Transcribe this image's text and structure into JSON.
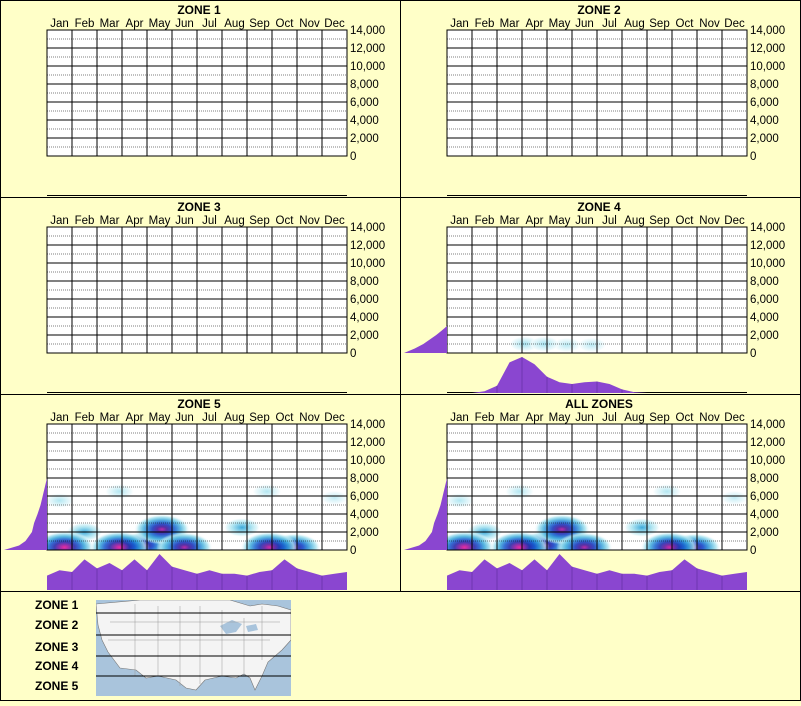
{
  "months": [
    "Jan",
    "Feb",
    "Mar",
    "Apr",
    "May",
    "Jun",
    "Jul",
    "Aug",
    "Sep",
    "Oct",
    "Nov",
    "Dec"
  ],
  "y_ticks": [
    "14,000",
    "12,000",
    "10,000",
    "8,000",
    "6,000",
    "4,000",
    "2,000",
    "0"
  ],
  "colors": {
    "background": "#ffffc8",
    "profile": "#8a46d0",
    "grid_line": "#000000"
  },
  "chart_data": [
    {
      "type": "heatmap",
      "title": "ZONE 1",
      "ylim": [
        0,
        14000
      ],
      "has_data": false,
      "hotspots": [],
      "left_profile": [],
      "bottom_profile": []
    },
    {
      "type": "heatmap",
      "title": "ZONE 2",
      "ylim": [
        0,
        14000
      ],
      "has_data": false,
      "hotspots": [],
      "left_profile": [],
      "bottom_profile": []
    },
    {
      "type": "heatmap",
      "title": "ZONE 3",
      "ylim": [
        0,
        14000
      ],
      "has_data": false,
      "hotspots": [],
      "left_profile": [],
      "bottom_profile": []
    },
    {
      "type": "heatmap",
      "title": "ZONE 4",
      "ylim": [
        0,
        14000
      ],
      "has_data": true,
      "hotspots": [
        {
          "month": 3.6,
          "elev": 1000,
          "intensity": 0.18
        },
        {
          "month": 4.4,
          "elev": 1000,
          "intensity": 0.18
        },
        {
          "month": 5.3,
          "elev": 900,
          "intensity": 0.14
        },
        {
          "month": 6.3,
          "elev": 900,
          "intensity": 0.14
        }
      ],
      "left_profile": [
        [
          0,
          1.0
        ],
        [
          500,
          0.75
        ],
        [
          1000,
          0.55
        ],
        [
          1500,
          0.4
        ],
        [
          2000,
          0.25
        ],
        [
          2500,
          0.12
        ],
        [
          3000,
          0.0
        ]
      ],
      "bottom_profile": [
        0,
        0,
        0,
        0.05,
        0.2,
        0.85,
        1.0,
        0.8,
        0.45,
        0.3,
        0.25,
        0.3,
        0.32,
        0.25,
        0.1,
        0.02,
        0,
        0,
        0,
        0,
        0,
        0,
        0,
        0,
        0
      ]
    },
    {
      "type": "heatmap",
      "title": "ZONE 5",
      "ylim": [
        0,
        14000
      ],
      "has_data": true,
      "hotspots": [
        {
          "month": 1.2,
          "elev": 300,
          "intensity": 1.0
        },
        {
          "month": 3.4,
          "elev": 300,
          "intensity": 1.0
        },
        {
          "month": 4.4,
          "elev": 500,
          "intensity": 0.8
        },
        {
          "month": 5.1,
          "elev": 2300,
          "intensity": 0.9
        },
        {
          "month": 6.0,
          "elev": 300,
          "intensity": 0.9
        },
        {
          "month": 9.4,
          "elev": 300,
          "intensity": 0.95
        },
        {
          "month": 10.4,
          "elev": 300,
          "intensity": 0.8
        },
        {
          "month": 2.0,
          "elev": 2000,
          "intensity": 0.35
        },
        {
          "month": 8.3,
          "elev": 2500,
          "intensity": 0.35
        },
        {
          "month": 1.0,
          "elev": 5500,
          "intensity": 0.15
        },
        {
          "month": 3.4,
          "elev": 6500,
          "intensity": 0.15
        },
        {
          "month": 9.3,
          "elev": 6500,
          "intensity": 0.15
        },
        {
          "month": 12.0,
          "elev": 5800,
          "intensity": 0.12
        }
      ],
      "left_profile": [
        [
          0,
          1.0
        ],
        [
          500,
          0.65
        ],
        [
          1000,
          0.5
        ],
        [
          2000,
          0.35
        ],
        [
          3000,
          0.3
        ],
        [
          4000,
          0.22
        ],
        [
          5000,
          0.15
        ],
        [
          6000,
          0.1
        ],
        [
          7000,
          0.05
        ],
        [
          8000,
          0.0
        ]
      ],
      "bottom_profile": [
        0.4,
        0.55,
        0.5,
        0.85,
        0.6,
        0.75,
        0.55,
        0.85,
        0.55,
        1.0,
        0.65,
        0.55,
        0.45,
        0.55,
        0.45,
        0.45,
        0.4,
        0.5,
        0.55,
        0.85,
        0.6,
        0.5,
        0.4,
        0.45,
        0.5
      ]
    },
    {
      "type": "heatmap",
      "title": "ALL ZONES",
      "ylim": [
        0,
        14000
      ],
      "has_data": true,
      "hotspots": [
        {
          "month": 1.2,
          "elev": 300,
          "intensity": 1.0
        },
        {
          "month": 3.4,
          "elev": 300,
          "intensity": 1.0
        },
        {
          "month": 4.4,
          "elev": 500,
          "intensity": 0.85
        },
        {
          "month": 5.1,
          "elev": 2300,
          "intensity": 0.9
        },
        {
          "month": 6.0,
          "elev": 300,
          "intensity": 0.9
        },
        {
          "month": 9.4,
          "elev": 300,
          "intensity": 0.95
        },
        {
          "month": 10.4,
          "elev": 300,
          "intensity": 0.8
        },
        {
          "month": 2.0,
          "elev": 2000,
          "intensity": 0.35
        },
        {
          "month": 8.3,
          "elev": 2500,
          "intensity": 0.35
        },
        {
          "month": 1.0,
          "elev": 5500,
          "intensity": 0.15
        },
        {
          "month": 3.4,
          "elev": 6500,
          "intensity": 0.15
        },
        {
          "month": 9.3,
          "elev": 6500,
          "intensity": 0.15
        },
        {
          "month": 12.0,
          "elev": 5800,
          "intensity": 0.12
        }
      ],
      "left_profile": [
        [
          0,
          1.0
        ],
        [
          500,
          0.65
        ],
        [
          1000,
          0.5
        ],
        [
          2000,
          0.35
        ],
        [
          3000,
          0.3
        ],
        [
          4000,
          0.22
        ],
        [
          5000,
          0.15
        ],
        [
          6000,
          0.1
        ],
        [
          7000,
          0.05
        ],
        [
          8000,
          0.0
        ]
      ],
      "bottom_profile": [
        0.4,
        0.55,
        0.5,
        0.85,
        0.6,
        0.75,
        0.55,
        0.85,
        0.55,
        1.0,
        0.65,
        0.55,
        0.45,
        0.55,
        0.45,
        0.45,
        0.4,
        0.5,
        0.55,
        0.85,
        0.6,
        0.5,
        0.4,
        0.45,
        0.5
      ]
    }
  ],
  "legend": {
    "zones": [
      "ZONE 1",
      "ZONE 2",
      "ZONE 3",
      "ZONE 4",
      "ZONE 5"
    ]
  }
}
